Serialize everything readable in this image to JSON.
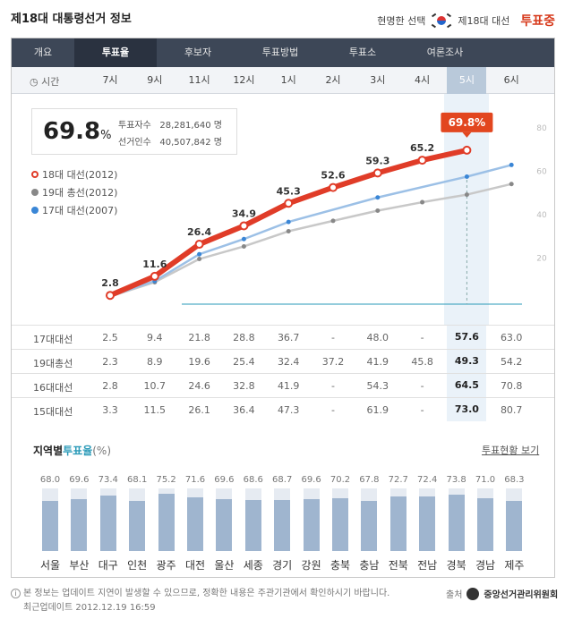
{
  "header": {
    "title": "제18대 대통령선거 정보",
    "tagline": "현명한 선택",
    "election_label": "제18대 대선",
    "live_label": "투표중"
  },
  "tabs": [
    "개요",
    "투표율",
    "후보자",
    "투표방법",
    "투표소",
    "여론조사"
  ],
  "active_tab": "투표율",
  "time_row": {
    "label": "시간",
    "times": [
      "7시",
      "9시",
      "11시",
      "12시",
      "1시",
      "2시",
      "3시",
      "4시",
      "5시",
      "6시"
    ],
    "current": "5시"
  },
  "summary": {
    "turnout": "69.8",
    "unit": "%",
    "voters_label": "투표자수",
    "voters_value": "28,281,640 명",
    "electorate_label": "선거인수",
    "electorate_value": "40,507,842 명"
  },
  "legend": [
    {
      "label": "18대 대선(2012)",
      "color": "#e03c28"
    },
    {
      "label": "19대 총선(2012)",
      "color": "#888888"
    },
    {
      "label": "17대 대선(2007)",
      "color": "#3a86d6"
    }
  ],
  "chart_data": {
    "type": "line",
    "categories": [
      "7시",
      "9시",
      "11시",
      "12시",
      "1시",
      "2시",
      "3시",
      "4시",
      "5시",
      "6시"
    ],
    "ylim": [
      0,
      90
    ],
    "y_ticks": [
      "80",
      "60",
      "40",
      "20"
    ],
    "current_label": "69.8%",
    "series": [
      {
        "name": "18대 대선(2012)",
        "color": "#e03c28",
        "values": [
          2.8,
          11.6,
          26.4,
          34.9,
          45.3,
          52.6,
          59.3,
          65.2,
          69.8,
          null
        ]
      },
      {
        "name": "19대 총선(2012)",
        "color": "#bbbbbb",
        "values": [
          2.3,
          8.9,
          19.6,
          25.4,
          32.4,
          37.2,
          41.9,
          45.8,
          49.3,
          54.2
        ]
      },
      {
        "name": "17대 대선(2007)",
        "color": "#3a86d6",
        "values": [
          2.5,
          9.4,
          21.8,
          28.8,
          36.7,
          null,
          48.0,
          null,
          57.6,
          63.0
        ]
      }
    ],
    "point_labels": [
      "2.8",
      "11.6",
      "26.4",
      "34.9",
      "45.3",
      "52.6",
      "59.3",
      "65.2"
    ]
  },
  "table": [
    {
      "label": "17대대선",
      "values": [
        "2.5",
        "9.4",
        "21.8",
        "28.8",
        "36.7",
        "-",
        "48.0",
        "-",
        "57.6",
        "63.0"
      ]
    },
    {
      "label": "19대총선",
      "values": [
        "2.3",
        "8.9",
        "19.6",
        "25.4",
        "32.4",
        "37.2",
        "41.9",
        "45.8",
        "49.3",
        "54.2"
      ]
    },
    {
      "label": "16대대선",
      "values": [
        "2.8",
        "10.7",
        "24.6",
        "32.8",
        "41.9",
        "-",
        "54.3",
        "-",
        "64.5",
        "70.8"
      ]
    },
    {
      "label": "15대대선",
      "values": [
        "3.3",
        "11.5",
        "26.1",
        "36.4",
        "47.3",
        "-",
        "61.9",
        "-",
        "73.0",
        "80.7"
      ]
    }
  ],
  "regional": {
    "title_a": "지역별",
    "title_b": "투표율",
    "title_c": "(%)",
    "link": "투표현황 보기",
    "regions": [
      {
        "name": "서울",
        "value": "68.0"
      },
      {
        "name": "부산",
        "value": "69.6"
      },
      {
        "name": "대구",
        "value": "73.4"
      },
      {
        "name": "인천",
        "value": "68.1"
      },
      {
        "name": "광주",
        "value": "75.2"
      },
      {
        "name": "대전",
        "value": "71.6"
      },
      {
        "name": "울산",
        "value": "69.6"
      },
      {
        "name": "세종",
        "value": "68.6"
      },
      {
        "name": "경기",
        "value": "68.7"
      },
      {
        "name": "강원",
        "value": "69.6"
      },
      {
        "name": "충북",
        "value": "70.2"
      },
      {
        "name": "충남",
        "value": "67.8"
      },
      {
        "name": "전북",
        "value": "72.7"
      },
      {
        "name": "전남",
        "value": "72.4"
      },
      {
        "name": "경북",
        "value": "73.8"
      },
      {
        "name": "경남",
        "value": "71.0"
      },
      {
        "name": "제주",
        "value": "68.3"
      }
    ]
  },
  "footer": {
    "notice": "본 정보는 업데이트 지연이 발생할 수 있으므로, 정확한 내용은 주관기관에서 확인하시기 바랍니다.",
    "updated": "최근업데이트 2012.12.19 16:59",
    "source_label": "출처",
    "source_name": "중앙선거관리위원회"
  }
}
